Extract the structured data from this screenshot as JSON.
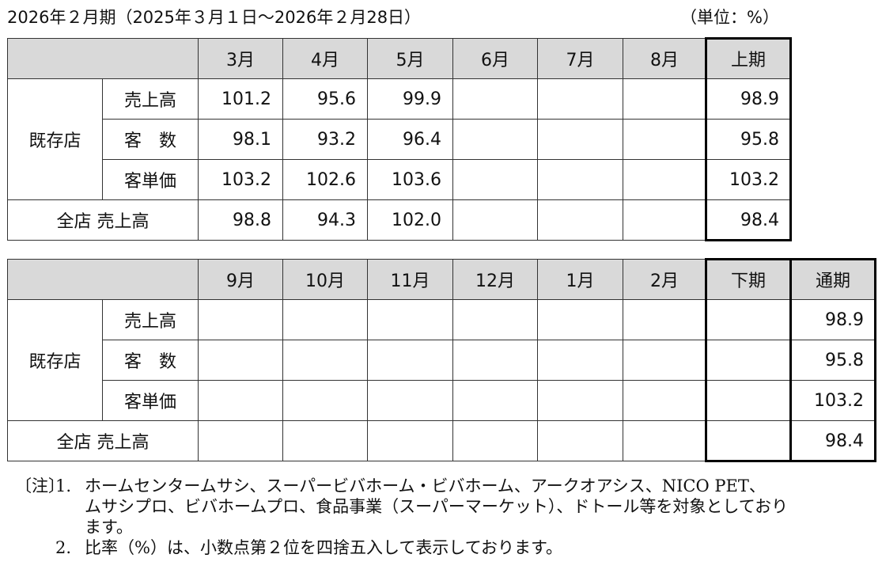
{
  "header": {
    "title": "2026年２月期（2025年３月１日〜2026年２月28日）",
    "unit": "（単位：%）"
  },
  "table1": {
    "columns": [
      "3月",
      "4月",
      "5月",
      "6月",
      "7月",
      "8月",
      "上期"
    ],
    "group_label": "既存店",
    "rows": [
      {
        "label": "売上高",
        "values": [
          "101.2",
          "95.6",
          "99.9",
          "",
          "",
          "",
          "98.9"
        ]
      },
      {
        "label": "客　数",
        "values": [
          "98.1",
          "93.2",
          "96.4",
          "",
          "",
          "",
          "95.8"
        ]
      },
      {
        "label": "客単価",
        "values": [
          "103.2",
          "102.6",
          "103.6",
          "",
          "",
          "",
          "103.2"
        ]
      }
    ],
    "total_row": {
      "label": "全店 売上高",
      "values": [
        "98.8",
        "94.3",
        "102.0",
        "",
        "",
        "",
        "98.4"
      ]
    }
  },
  "table2": {
    "columns": [
      "9月",
      "10月",
      "11月",
      "12月",
      "1月",
      "2月",
      "下期",
      "通期"
    ],
    "group_label": "既存店",
    "rows": [
      {
        "label": "売上高",
        "values": [
          "",
          "",
          "",
          "",
          "",
          "",
          "",
          "98.9"
        ]
      },
      {
        "label": "客　数",
        "values": [
          "",
          "",
          "",
          "",
          "",
          "",
          "",
          "95.8"
        ]
      },
      {
        "label": "客単価",
        "values": [
          "",
          "",
          "",
          "",
          "",
          "",
          "",
          "103.2"
        ]
      }
    ],
    "total_row": {
      "label": "全店 売上高",
      "values": [
        "",
        "",
        "",
        "",
        "",
        "",
        "",
        "98.4"
      ]
    }
  },
  "notes": {
    "tag": "〔注〕",
    "items": [
      {
        "num": "1.",
        "lines": [
          "ホームセンタームサシ、スーパービバホーム・ビバホーム、アークオアシス、NICO PET、",
          "ムサシプロ、ビバホームプロ、食品事業（スーパーマーケット）、ドトール等を対象としており",
          "ます。"
        ]
      },
      {
        "num": "2.",
        "lines": [
          "比率（%）は、小数点第２位を四捨五入して表示しております。"
        ]
      }
    ]
  }
}
